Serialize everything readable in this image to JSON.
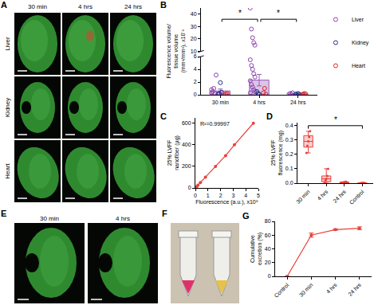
{
  "images": [
    {
      "panel": "A",
      "columns": [
        "30 min",
        "4 hrs",
        "24 hrs"
      ],
      "rows": [
        "Liver",
        "Kidney",
        "Heart"
      ]
    },
    {
      "panel": "E",
      "columns": [
        "30 min",
        "4 hrs"
      ]
    },
    {
      "panel": "F"
    }
  ],
  "chart_data": [
    {
      "panel": "B",
      "type": "scatter",
      "ylabel": [
        "Fluorescence volume/",
        "tissue volume",
        "(mm³/mm³), x10⁻³"
      ],
      "categories": [
        "30 min",
        "4 hrs",
        "24 hrs"
      ],
      "ylim": [
        0,
        6
      ],
      "yticks": [
        0,
        2,
        4,
        6
      ],
      "y2lim": [
        10,
        45
      ],
      "y2ticks": [
        10,
        20,
        30,
        40
      ],
      "grid": false,
      "marker": "open circle",
      "legend": "right",
      "bars": {
        "values": [
          0.6,
          2.3,
          0.1
        ],
        "errors": [
          0.3,
          0.9,
          0.05
        ],
        "color": "#9b59b6"
      },
      "series": [
        {
          "name": "Liver",
          "color": "#8e44ad",
          "values": [
            [
              0.3,
              0.5,
              1.0,
              0.2,
              3.1,
              0.8
            ],
            [
              45,
              28,
              21,
              17,
              15,
              5.5,
              4.6,
              4.0,
              3.3,
              2.8,
              2.2,
              1.6,
              1.2,
              0.8,
              0.5,
              0.3
            ],
            [
              0.1,
              0.2,
              0.05,
              0.3
            ]
          ]
        },
        {
          "name": "Kidney",
          "color": "#1f2f8a",
          "values": [
            [
              0.1,
              0.2,
              1.9,
              0.4
            ],
            [
              0.5,
              0.2,
              0.1
            ],
            [
              0.1,
              0.05,
              0.2,
              0.1
            ]
          ]
        },
        {
          "name": "Heart",
          "color": "#d62728",
          "values": [
            [
              0.0,
              0.1,
              0.2
            ],
            [
              0.3,
              1.0,
              0.1
            ],
            [
              0.05,
              0.1,
              0.2,
              0.1
            ]
          ]
        }
      ],
      "significance": [
        {
          "from": "30 min",
          "to": "4 hrs",
          "label": "*"
        },
        {
          "from": "4 hrs",
          "to": "24 hrs",
          "label": "*"
        }
      ]
    },
    {
      "panel": "C",
      "type": "line",
      "xlabel": "Fluorescence (a.u.), x10⁸",
      "ylabel": [
        "25% LVFF",
        "nanofiber (µg)"
      ],
      "x": [
        0,
        0.05,
        0.1,
        0.2,
        0.4,
        0.8,
        1.6,
        2.4,
        3.1,
        4.6
      ],
      "values": [
        0,
        6,
        12,
        25,
        50,
        100,
        200,
        300,
        400,
        600
      ],
      "xlim": [
        0,
        5
      ],
      "xticks": [
        0,
        1,
        2,
        3,
        4,
        5
      ],
      "ylim": [
        0,
        650
      ],
      "yticks": [
        0,
        200,
        400,
        600
      ],
      "grid": false,
      "color": "#e8413a",
      "marker": "circle",
      "line_style": "solid",
      "annotation": "R²=0.99997"
    },
    {
      "panel": "D",
      "type": "box",
      "ylabel": [
        "25% LVFF",
        "fluorescence (mg)"
      ],
      "categories": [
        "30 min",
        "4 hrs",
        "24 hrs",
        "Control"
      ],
      "ylim": [
        0,
        0.42
      ],
      "yticks": [
        {
          "value": 0,
          "label": "0.0"
        },
        0.1,
        0.2,
        0.3,
        0.4
      ],
      "grid": false,
      "color": "#e8413a",
      "boxes": {
        "q1": [
          0.25,
          0.01,
          0.002,
          0.0
        ],
        "median": [
          0.29,
          0.03,
          0.005,
          0.001
        ],
        "q3": [
          0.33,
          0.05,
          0.008,
          0.002
        ],
        "min": [
          0.21,
          0.0,
          0.0,
          0.0
        ],
        "max": [
          0.36,
          0.1,
          0.01,
          0.003
        ]
      },
      "points": [
        [
          0.21,
          0.26,
          0.29,
          0.32,
          0.36
        ],
        [
          0.0,
          0.02,
          0.03,
          0.05,
          0.1
        ],
        [
          0.0,
          0.004,
          0.005,
          0.008,
          0.01
        ],
        [
          0.0,
          0.001,
          0.002,
          0.0,
          0.003
        ]
      ],
      "significance": [
        {
          "from": "30 min",
          "to": "Control",
          "label": "*"
        }
      ]
    },
    {
      "panel": "G",
      "type": "line",
      "ylabel": [
        "Cumulative",
        "excretion (%)"
      ],
      "categories": [
        "Control",
        "30 min",
        "4 hrs",
        "24 hrs"
      ],
      "values": [
        0,
        60,
        68,
        70
      ],
      "errors": [
        0,
        3,
        1,
        2
      ],
      "ylim": [
        0,
        80
      ],
      "yticks": [
        0,
        20,
        40,
        60,
        80
      ],
      "grid": false,
      "color": "#e8413a",
      "marker": "circle",
      "line_style": "solid"
    }
  ]
}
